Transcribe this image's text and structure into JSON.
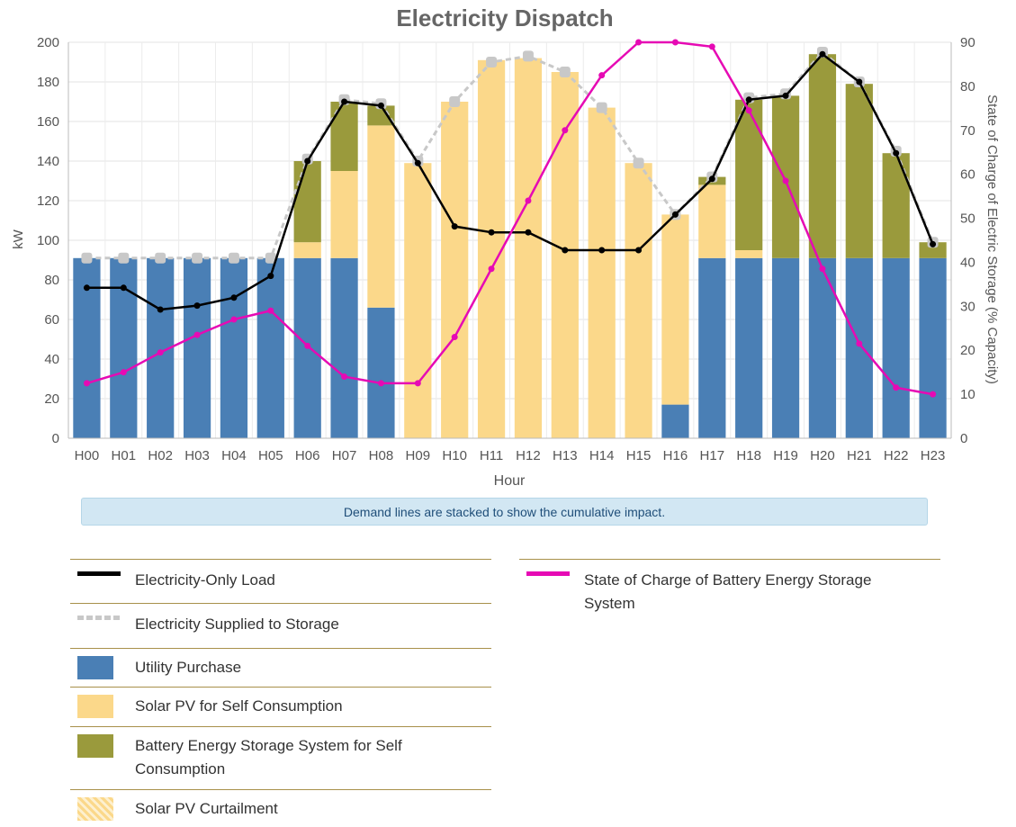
{
  "chart_data": {
    "type": "bar",
    "title": "Electricity Dispatch",
    "xlabel": "Hour",
    "ylabel": "kW",
    "y2label": "State of Charge of Electric Storage (% Capacity)",
    "ylim": [
      0,
      200
    ],
    "y2lim": [
      0,
      90
    ],
    "yticks": [
      0,
      20,
      40,
      60,
      80,
      100,
      120,
      140,
      160,
      180,
      200
    ],
    "y2ticks": [
      0,
      10,
      20,
      30,
      40,
      50,
      60,
      70,
      80,
      90
    ],
    "grid": true,
    "categories": [
      "H00",
      "H01",
      "H02",
      "H03",
      "H04",
      "H05",
      "H06",
      "H07",
      "H08",
      "H09",
      "H10",
      "H11",
      "H12",
      "H13",
      "H14",
      "H15",
      "H16",
      "H17",
      "H18",
      "H19",
      "H20",
      "H21",
      "H22",
      "H23"
    ],
    "stacked_series": [
      {
        "name": "Utility Purchase",
        "color": "#4a7fb5",
        "values": [
          91,
          91,
          91,
          91,
          91,
          91,
          91,
          91,
          66,
          0,
          0,
          0,
          0,
          0,
          0,
          0,
          17,
          91,
          91,
          91,
          91,
          91,
          91,
          91
        ]
      },
      {
        "name": "Solar PV for Self Consumption",
        "color": "#fbd88a",
        "values": [
          0,
          0,
          0,
          0,
          0,
          0,
          8,
          44,
          92,
          139,
          170,
          191,
          192,
          185,
          167,
          139,
          96,
          37,
          4,
          0,
          0,
          0,
          0,
          0
        ]
      },
      {
        "name": "Battery Energy Storage System for Self Consumption",
        "color": "#9a9a3c",
        "values": [
          0,
          0,
          0,
          0,
          0,
          0,
          41,
          35,
          10,
          0,
          0,
          0,
          0,
          0,
          0,
          0,
          0,
          4,
          76,
          82,
          103,
          88,
          53,
          8
        ]
      },
      {
        "name": "Solar PV Curtailment",
        "color": "#fbd88a",
        "values": [
          0,
          0,
          0,
          0,
          0,
          0,
          0,
          0,
          0,
          0,
          0,
          0,
          0,
          0,
          0,
          0,
          0,
          0,
          0,
          0,
          0,
          0,
          0,
          0
        ]
      }
    ],
    "line_series": [
      {
        "name": "Electricity-Only Load",
        "color": "#000000",
        "axis": "left",
        "values": [
          76,
          76,
          65,
          67,
          71,
          82,
          140,
          170,
          168,
          139,
          107,
          104,
          104,
          95,
          95,
          95,
          113,
          131,
          171,
          173,
          194,
          180,
          144,
          98
        ]
      },
      {
        "name": "Electricity Supplied to Storage",
        "color": "#c8c8c8",
        "axis": "left",
        "dashed": true,
        "values": [
          91,
          91,
          91,
          91,
          91,
          91,
          141,
          171,
          169,
          140,
          170,
          190,
          193,
          185,
          167,
          139,
          113,
          132,
          172,
          174,
          195,
          180,
          145,
          99
        ]
      },
      {
        "name": "State of Charge of Battery Energy Storage System",
        "color": "#e60ab4",
        "axis": "right",
        "values": [
          12.5,
          15,
          19.5,
          23.5,
          27,
          29,
          21,
          14,
          12.5,
          12.5,
          23,
          38.5,
          54,
          70,
          82.5,
          90,
          90,
          89,
          74.5,
          58.5,
          38.5,
          21.5,
          11.5,
          10
        ]
      }
    ]
  },
  "note": "Demand lines are stacked to show the cumulative impact.",
  "legend": {
    "left": [
      {
        "label": "Electricity-Only Load",
        "icon": "black-line-icon"
      },
      {
        "label": "Electricity Supplied to Storage",
        "icon": "gray-dashed-line-icon"
      },
      {
        "label": "Utility Purchase",
        "icon": "blue-box-icon"
      },
      {
        "label": "Solar PV for Self Consumption",
        "icon": "yellow-box-icon"
      },
      {
        "label": "Battery Energy Storage System for Self Consumption",
        "icon": "olive-box-icon"
      },
      {
        "label": "Solar PV Curtailment",
        "icon": "hatched-yellow-box-icon"
      }
    ],
    "right": [
      {
        "label": "State of Charge of Battery Energy Storage System",
        "icon": "magenta-line-icon"
      }
    ]
  }
}
